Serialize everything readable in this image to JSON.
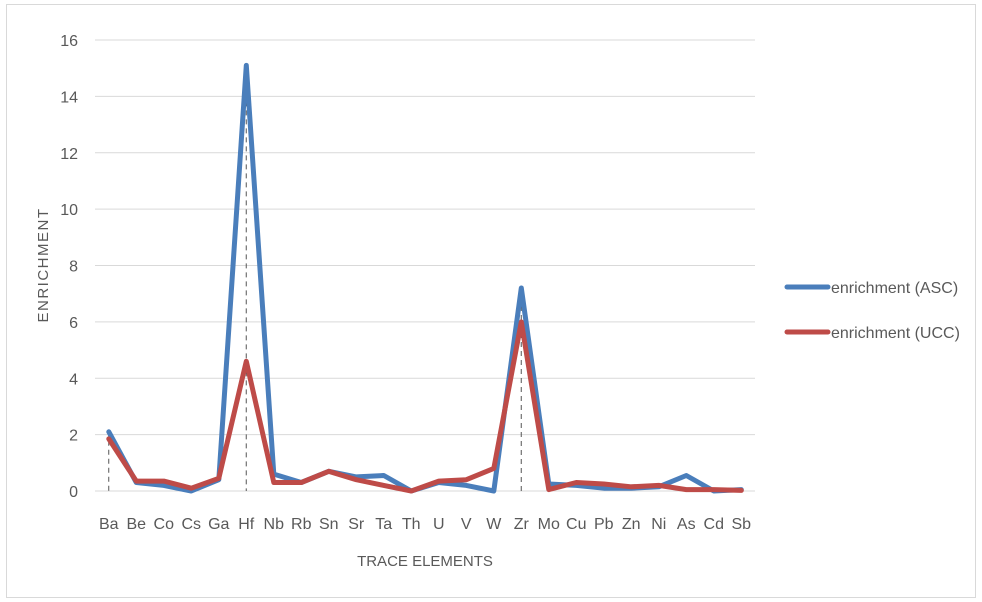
{
  "chart_data": {
    "type": "line",
    "categories": [
      "Ba",
      "Be",
      "Co",
      "Cs",
      "Ga",
      "Hf",
      "Nb",
      "Rb",
      "Sn",
      "Sr",
      "Ta",
      "Th",
      "U",
      "V",
      "W",
      "Zr",
      "Mo",
      "Cu",
      "Pb",
      "Zn",
      "Ni",
      "As",
      "Cd",
      "Sb"
    ],
    "series": [
      {
        "name": "enrichment (ASC)",
        "color": "#4a7ebb",
        "values": [
          2.1,
          0.3,
          0.2,
          0.0,
          0.4,
          15.1,
          0.6,
          0.3,
          0.7,
          0.5,
          0.55,
          0.0,
          0.3,
          0.2,
          0.0,
          7.2,
          0.25,
          0.2,
          0.1,
          0.1,
          0.15,
          0.55,
          0.0,
          0.05
        ]
      },
      {
        "name": "enrichment (UCC)",
        "color": "#be4b48",
        "values": [
          1.85,
          0.35,
          0.35,
          0.1,
          0.45,
          4.6,
          0.3,
          0.3,
          0.7,
          0.4,
          0.2,
          0.0,
          0.35,
          0.4,
          0.8,
          6.0,
          0.05,
          0.3,
          0.25,
          0.15,
          0.2,
          0.05,
          0.05,
          0.02
        ]
      }
    ],
    "dashed_drop_lines": [
      "Ba",
      "Hf",
      "Zr"
    ],
    "xlabel": "TRACE ELEMENTS",
    "ylabel": "ENRICHMENT",
    "ylim": [
      0,
      16
    ],
    "yticks": [
      0,
      2,
      4,
      6,
      8,
      10,
      12,
      14,
      16
    ],
    "grid": true,
    "legend": "right"
  }
}
